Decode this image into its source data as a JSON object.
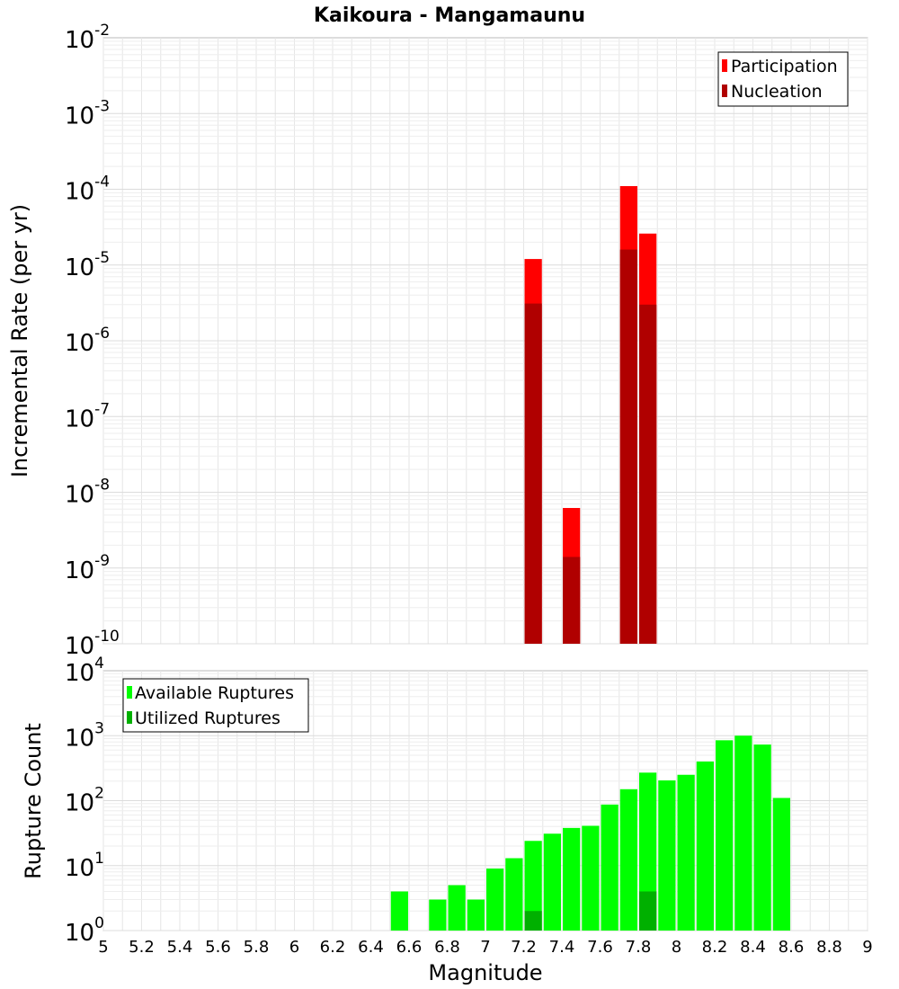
{
  "chart_data": [
    {
      "type": "bar",
      "title": "Kaikoura - Mangamaunu",
      "ylabel": "Incremental Rate (per yr)",
      "xlabel": "",
      "yscale": "log",
      "ylim_exp": [
        -10,
        -2
      ],
      "xlim": [
        5,
        9
      ],
      "legend_position": "top-right",
      "series": [
        {
          "name": "Participation",
          "color": "#ff0000",
          "points": [
            {
              "x": 7.25,
              "value": 1.2e-05
            },
            {
              "x": 7.45,
              "value": 6.2e-09
            },
            {
              "x": 7.75,
              "value": 0.00011
            },
            {
              "x": 7.85,
              "value": 2.6e-05
            }
          ]
        },
        {
          "name": "Nucleation",
          "color": "#b00000",
          "points": [
            {
              "x": 7.25,
              "value": 3.1e-06
            },
            {
              "x": 7.45,
              "value": 1.4e-09
            },
            {
              "x": 7.75,
              "value": 1.6e-05
            },
            {
              "x": 7.85,
              "value": 3e-06
            }
          ]
        }
      ]
    },
    {
      "type": "bar",
      "title": "",
      "ylabel": "Rupture Count",
      "xlabel": "Magnitude",
      "yscale": "log",
      "ylim_exp": [
        0,
        4
      ],
      "xlim": [
        5,
        9
      ],
      "legend_position": "top-left",
      "series": [
        {
          "name": "Available Ruptures",
          "color": "#00ff00",
          "points": [
            {
              "x": 6.55,
              "value": 4
            },
            {
              "x": 6.75,
              "value": 3
            },
            {
              "x": 6.85,
              "value": 5
            },
            {
              "x": 6.95,
              "value": 3
            },
            {
              "x": 7.05,
              "value": 9
            },
            {
              "x": 7.15,
              "value": 13
            },
            {
              "x": 7.25,
              "value": 24
            },
            {
              "x": 7.35,
              "value": 31
            },
            {
              "x": 7.45,
              "value": 38
            },
            {
              "x": 7.55,
              "value": 41
            },
            {
              "x": 7.65,
              "value": 87
            },
            {
              "x": 7.75,
              "value": 150
            },
            {
              "x": 7.85,
              "value": 270
            },
            {
              "x": 7.95,
              "value": 205
            },
            {
              "x": 8.05,
              "value": 250
            },
            {
              "x": 8.15,
              "value": 400
            },
            {
              "x": 8.25,
              "value": 850
            },
            {
              "x": 8.35,
              "value": 1000
            },
            {
              "x": 8.45,
              "value": 730
            },
            {
              "x": 8.55,
              "value": 110
            }
          ]
        },
        {
          "name": "Utilized Ruptures",
          "color": "#00b000",
          "points": [
            {
              "x": 7.25,
              "value": 2
            },
            {
              "x": 7.45,
              "value": 1
            },
            {
              "x": 7.75,
              "value": 1
            },
            {
              "x": 7.85,
              "value": 4
            }
          ]
        }
      ]
    }
  ],
  "x_ticks": [
    "5",
    "5.2",
    "5.4",
    "5.6",
    "5.8",
    "6",
    "6.2",
    "6.4",
    "6.6",
    "6.8",
    "7",
    "7.2",
    "7.4",
    "7.6",
    "7.8",
    "8",
    "8.2",
    "8.4",
    "8.6",
    "8.8",
    "9"
  ],
  "top_y_ticks": [
    "-10",
    "-9",
    "-8",
    "-7",
    "-6",
    "-5",
    "-4",
    "-3",
    "-2"
  ],
  "bottom_y_ticks": [
    "0",
    "1",
    "2",
    "3",
    "4"
  ],
  "tick_base": "10",
  "bin_width": 0.1
}
